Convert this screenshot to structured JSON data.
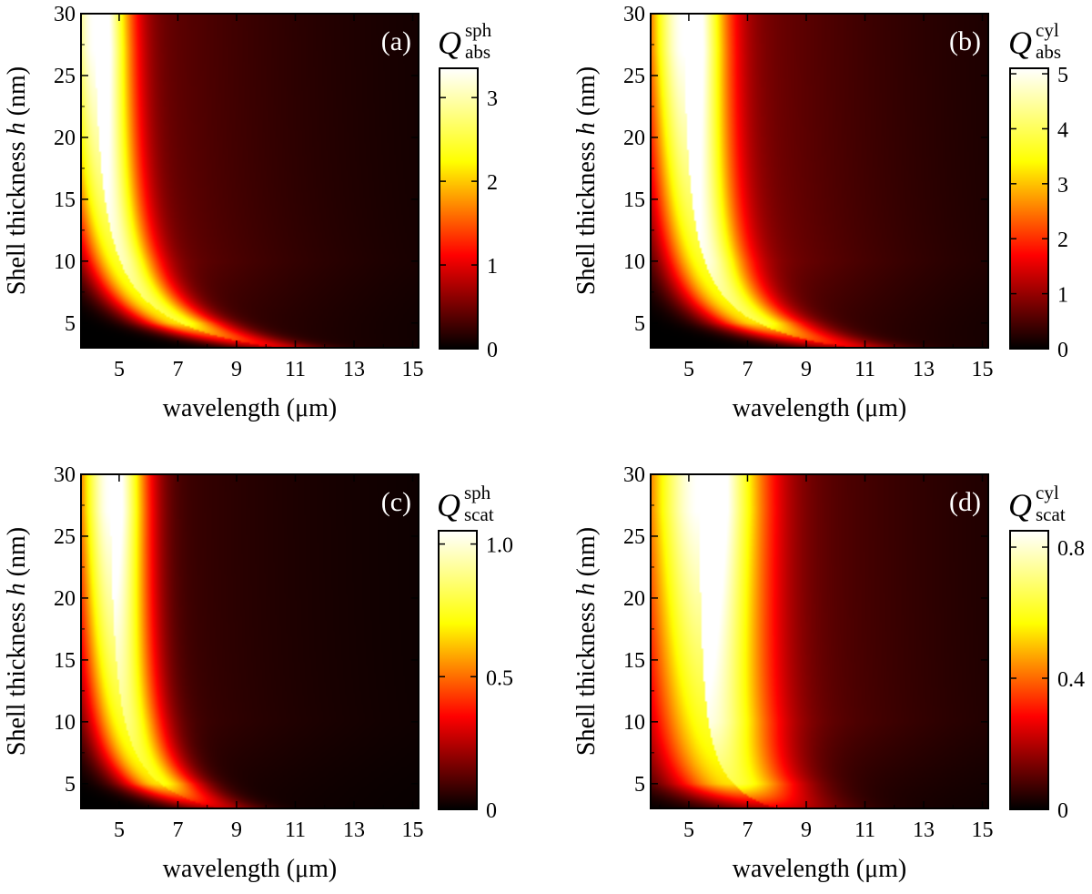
{
  "chart_data": [
    {
      "type": "heatmap",
      "panel_label": "(a)",
      "xlabel": "wavelength (μm)",
      "ylabel_prefix": "Shell thickness ",
      "ylabel_var": "h",
      "ylabel_suffix": " (nm)",
      "colorbar_symbol": "Q",
      "colorbar_sup": "sph",
      "colorbar_sub": "abs",
      "xlim": [
        3.7,
        15.2
      ],
      "ylim": [
        3,
        30
      ],
      "xticks": [
        "5",
        "7",
        "9",
        "11",
        "13",
        "15"
      ],
      "yticks": [
        "5",
        "10",
        "15",
        "20",
        "25",
        "30"
      ],
      "colorbar_range": [
        0,
        3.35
      ],
      "colorbar_ticks": [
        {
          "value": 0,
          "label": "0"
        },
        {
          "value": 1,
          "label": "1"
        },
        {
          "value": 2,
          "label": "2"
        },
        {
          "value": 3,
          "label": "3"
        }
      ],
      "peak": 3.3,
      "tail": 0.2,
      "resonance": {
        "a": 4.0,
        "b": 30,
        "c": 0.19,
        "width": 1.0
      },
      "colormap": [
        "#000000",
        "#ff0000",
        "#ffff00",
        "#ffffff"
      ]
    },
    {
      "type": "heatmap",
      "panel_label": "(b)",
      "xlabel": "wavelength (μm)",
      "ylabel_prefix": "Shell thickness ",
      "ylabel_var": "h",
      "ylabel_suffix": " (nm)",
      "colorbar_symbol": "Q",
      "colorbar_sup": "cyl",
      "colorbar_sub": "abs",
      "xlim": [
        3.7,
        15.2
      ],
      "ylim": [
        3,
        30
      ],
      "xticks": [
        "5",
        "7",
        "9",
        "11",
        "13",
        "15"
      ],
      "yticks": [
        "5",
        "10",
        "15",
        "20",
        "25",
        "30"
      ],
      "colorbar_range": [
        0,
        5.1
      ],
      "colorbar_ticks": [
        {
          "value": 0,
          "label": "0"
        },
        {
          "value": 1,
          "label": "1"
        },
        {
          "value": 2,
          "label": "2"
        },
        {
          "value": 3,
          "label": "3"
        },
        {
          "value": 4,
          "label": "4"
        },
        {
          "value": 5,
          "label": "5"
        }
      ],
      "peak": 5.1,
      "tail": 0.25,
      "resonance": {
        "a": 4.7,
        "b": 32,
        "c": 0.28,
        "width": 1.1
      },
      "colormap": [
        "#000000",
        "#ff0000",
        "#ffff00",
        "#ffffff"
      ]
    },
    {
      "type": "heatmap",
      "panel_label": "(c)",
      "xlabel": "wavelength (μm)",
      "ylabel_prefix": "Shell thickness ",
      "ylabel_var": "h",
      "ylabel_suffix": " (nm)",
      "colorbar_symbol": "Q",
      "colorbar_sup": "sph",
      "colorbar_sub": "scat",
      "xlim": [
        3.7,
        15.2
      ],
      "ylim": [
        3,
        30
      ],
      "xticks": [
        "5",
        "7",
        "9",
        "11",
        "13",
        "15"
      ],
      "yticks": [
        "5",
        "10",
        "15",
        "20",
        "25",
        "30"
      ],
      "colorbar_range": [
        0,
        1.05
      ],
      "colorbar_ticks": [
        {
          "value": 0,
          "label": "0"
        },
        {
          "value": 0.5,
          "label": "0.5"
        },
        {
          "value": 1.0,
          "label": "1.0"
        }
      ],
      "peak": 1.05,
      "tail": 0.12,
      "resonance": {
        "a": 4.6,
        "b": 18,
        "c": 0.2,
        "width": 1.0
      },
      "colormap": [
        "#000000",
        "#ff0000",
        "#ffff00",
        "#ffffff"
      ]
    },
    {
      "type": "heatmap",
      "panel_label": "(d)",
      "xlabel": "wavelength (μm)",
      "ylabel_prefix": "Shell thickness ",
      "ylabel_var": "h",
      "ylabel_suffix": " (nm)",
      "colorbar_symbol": "Q",
      "colorbar_sup": "cyl",
      "colorbar_sub": "scat",
      "xlim": [
        3.7,
        15.2
      ],
      "ylim": [
        3,
        30
      ],
      "xticks": [
        "5",
        "7",
        "9",
        "11",
        "13",
        "15"
      ],
      "yticks": [
        "5",
        "10",
        "15",
        "20",
        "25",
        "30"
      ],
      "colorbar_range": [
        0,
        0.85
      ],
      "colorbar_ticks": [
        {
          "value": 0,
          "label": "0"
        },
        {
          "value": 0.4,
          "label": "0.4"
        },
        {
          "value": 0.8,
          "label": "0.8"
        }
      ],
      "peak": 0.85,
      "tail": 0.25,
      "resonance": {
        "a": 5.3,
        "b": 16,
        "c": 0.33,
        "width": 1.6
      },
      "colormap": [
        "#000000",
        "#ff0000",
        "#ffff00",
        "#ffffff"
      ]
    }
  ]
}
